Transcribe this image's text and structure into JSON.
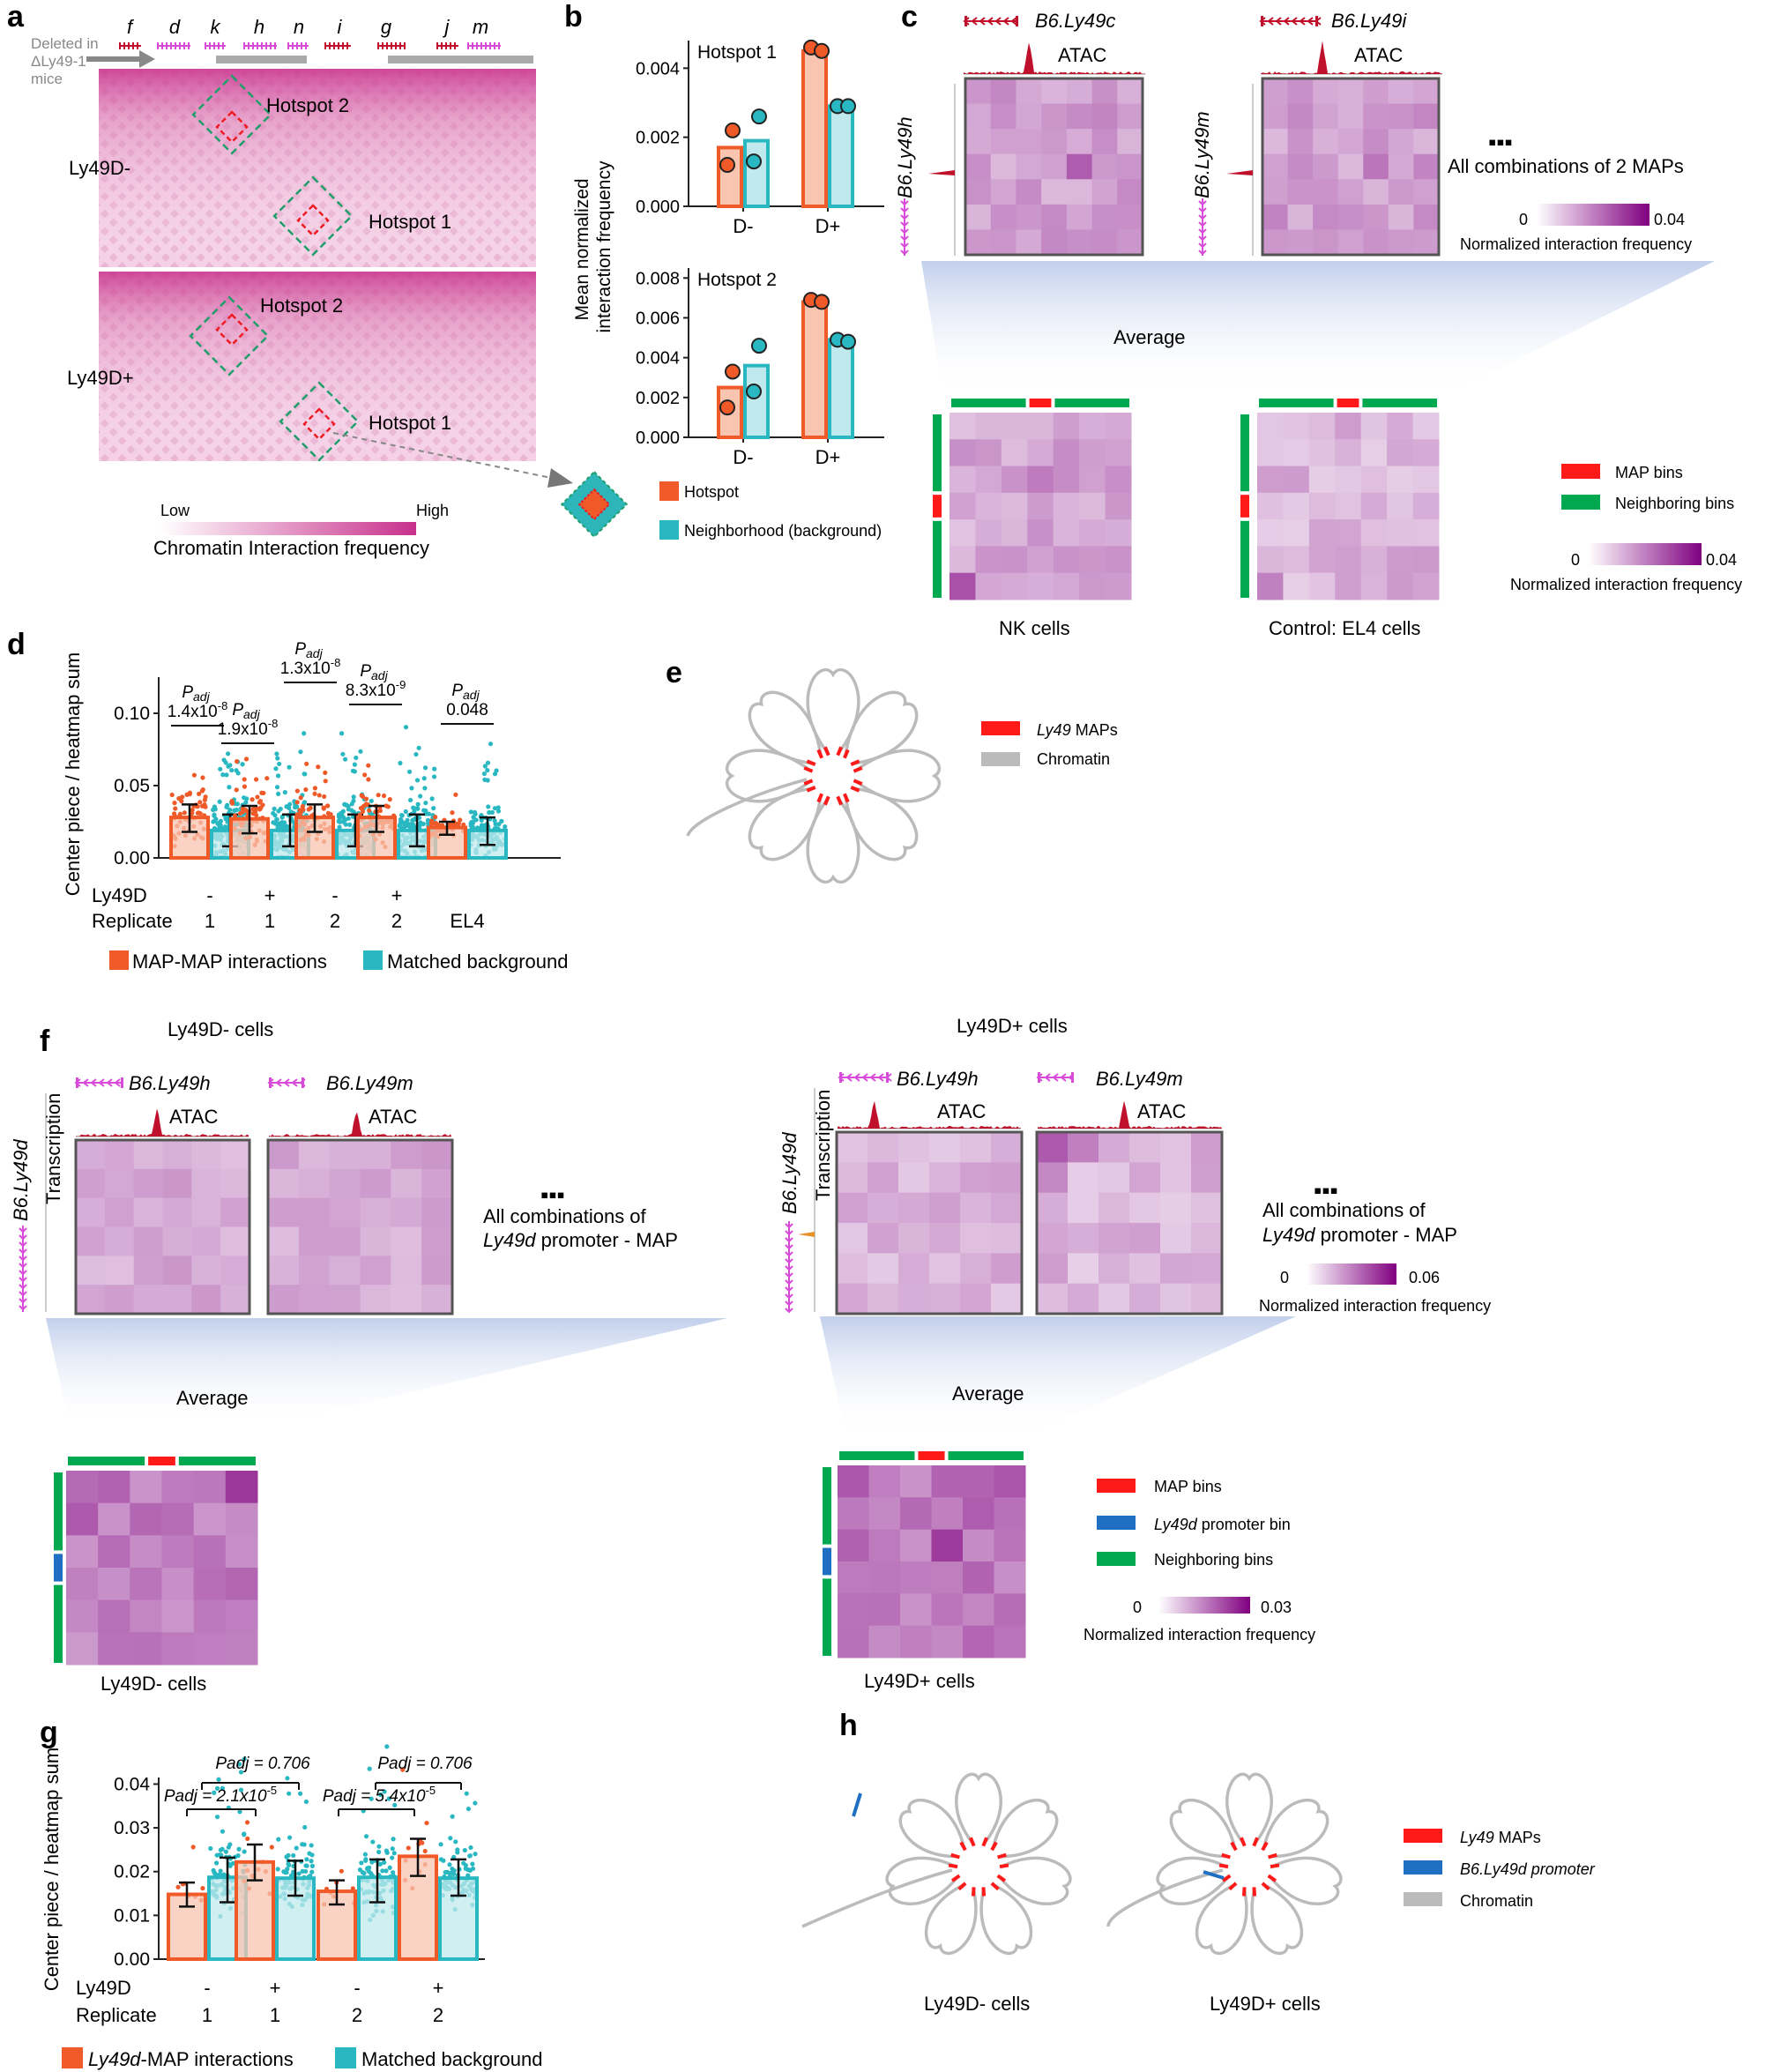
{
  "panel_letters": {
    "a": "a",
    "b": "b",
    "c": "c",
    "d": "d",
    "e": "e",
    "f": "f",
    "g": "g",
    "h": "h"
  },
  "colors": {
    "map": "#f05a28",
    "background": "#29b8c2",
    "mapFill": "#f9c4b0",
    "bgFill": "#bfe9ec",
    "heat_lo": "#ffffff",
    "heat_hi": "#800080",
    "hic": "#c8308c",
    "map_bins": "#ff1a1a",
    "neighbor_bins": "#00a94f",
    "promoter_bin": "#1f6fc2",
    "chromatin": "#bbbbbb",
    "atac": "#c0112c",
    "gene": "#d84bd8"
  },
  "panel_a": {
    "genes": [
      "f",
      "d",
      "k",
      "h",
      "n",
      "i",
      "g",
      "j",
      "m"
    ],
    "deleted_label": "Deleted in\nΔLy49-1\nmice",
    "track1": "Ly49D-",
    "track2": "Ly49D+",
    "hotspot1": "Hotspot 1",
    "hotspot2": "Hotspot 2",
    "scale_low": "Low",
    "scale_high": "High",
    "scale_title": "Chromatin Interaction frequency"
  },
  "panel_b": {
    "ylabel": "Mean normalized\ninteraction frequency",
    "legend_hotspot": "Hotspot",
    "legend_bg": "Neighborhood (background)"
  },
  "panel_c": {
    "gene_top_1": "B6.Ly49c",
    "gene_top_2": "B6.Ly49i",
    "gene_left_1": "B6.Ly49h",
    "gene_left_2": "B6.Ly49m",
    "atac": "ATAC",
    "dots": "▪▪▪",
    "combos": "All combinations of 2 MAPs",
    "scale_min": "0",
    "scale_max": "0.04",
    "scale_title": "Normalized  interaction frequency",
    "average": "Average",
    "nk": "NK cells",
    "el4": "Control: EL4 cells",
    "legend_map": "MAP bins",
    "legend_neighbor": "Neighboring bins",
    "scale2_min": "0",
    "scale2_max": "0.04",
    "scale2_title": "Normalized  interaction frequency"
  },
  "panel_d": {
    "ylabel": "Center piece / heatmap sum",
    "ly49d_label": "Ly49D",
    "replicate_label": "Replicate",
    "groups": [
      {
        "ly49d": "-",
        "rep": "1"
      },
      {
        "ly49d": "+",
        "rep": "1"
      },
      {
        "ly49d": "-",
        "rep": "2"
      },
      {
        "ly49d": "+",
        "rep": "2"
      },
      {
        "ly49d": "",
        "rep": "EL4"
      }
    ],
    "padj": [
      {
        "label": "P",
        "sub": "adj",
        "val": "1.4x10",
        "exp": "-8"
      },
      {
        "label": "P",
        "sub": "adj",
        "val": "1.9x10",
        "exp": "-8"
      },
      {
        "label": "P",
        "sub": "adj",
        "val": "1.3x10",
        "exp": "-8"
      },
      {
        "label": "P",
        "sub": "adj",
        "val": "8.3x10",
        "exp": "-9"
      },
      {
        "label": "P",
        "sub": "adj",
        "val": "0.048",
        "exp": ""
      }
    ],
    "legend_map": "MAP-MAP interactions",
    "legend_bg": "Matched background"
  },
  "panel_e": {
    "legend_map": "Ly49 MAPs",
    "legend_chromatin": "Chromatin"
  },
  "panel_f": {
    "left_title": "Ly49D- cells",
    "right_title": "Ly49D+ cells",
    "gene_h": "B6.Ly49h",
    "gene_m": "B6.Ly49m",
    "gene_d": "B6.Ly49d",
    "transcription": "Transcription",
    "atac": "ATAC",
    "dots": "▪▪▪",
    "combos_1": "All combinations of",
    "combos_2": " promoter - MAP",
    "combos_gene": "Ly49d",
    "scale_min": "0",
    "scale_max": "0.06",
    "scale_title": "Normalized  interaction frequency",
    "average": "Average",
    "left_caption": "Ly49D- cells",
    "right_caption": "Ly49D+ cells",
    "legend_map": "MAP bins",
    "legend_promoter": " promoter bin",
    "legend_promoter_gene": "Ly49d",
    "legend_neighbor": "Neighboring bins",
    "scale2_min": "0",
    "scale2_max": "0.03",
    "scale2_title": "Normalized  interaction frequency"
  },
  "panel_g": {
    "ylabel": "Center piece / heatmap sum",
    "ly49d_label": "Ly49D",
    "replicate_label": "Replicate",
    "groups": [
      {
        "ly49d": "-",
        "rep": "1"
      },
      {
        "ly49d": "+",
        "rep": "1"
      },
      {
        "ly49d": "-",
        "rep": "2"
      },
      {
        "ly49d": "+",
        "rep": "2"
      }
    ],
    "padj_top_1": "Padj = 0.706",
    "padj_top_2": "Padj = 0.706",
    "padj_low_1": "Padj = 2.1x10",
    "padj_low_1_exp": "-5",
    "padj_low_2": "Padj = 5.4x10",
    "padj_low_2_exp": "-5",
    "legend_map_gene": "Ly49d",
    "legend_map": "-MAP interactions",
    "legend_bg": "Matched background"
  },
  "panel_h": {
    "legend_map": "Ly49 MAPs",
    "legend_promoter": "B6.Ly49d promoter",
    "legend_chromatin": "Chromatin",
    "left_caption": "Ly49D- cells",
    "right_caption": "Ly49D+ cells"
  },
  "chart_data": [
    {
      "id": "b_hotspot1",
      "type": "bar",
      "title": "Hotspot 1",
      "categories": [
        "D-",
        "D+"
      ],
      "series": [
        {
          "name": "Hotspot",
          "values": [
            0.0017,
            0.0045
          ],
          "points": [
            [
              0.0012,
              0.0022
            ],
            [
              0.0046,
              0.0045
            ]
          ]
        },
        {
          "name": "Neighborhood (background)",
          "values": [
            0.0019,
            0.0029
          ],
          "points": [
            [
              0.0013,
              0.0026
            ],
            [
              0.0029,
              0.0029
            ]
          ]
        }
      ],
      "ylim": [
        0,
        0.0048
      ],
      "yticks": [
        0.0,
        0.002,
        0.004
      ],
      "ytick_labels": [
        "0.000",
        "0.002",
        "0.004"
      ]
    },
    {
      "id": "b_hotspot2",
      "type": "bar",
      "title": "Hotspot 2",
      "categories": [
        "D-",
        "D+"
      ],
      "series": [
        {
          "name": "Hotspot",
          "values": [
            0.0025,
            0.0068
          ],
          "points": [
            [
              0.0015,
              0.0033
            ],
            [
              0.0069,
              0.0068
            ]
          ]
        },
        {
          "name": "Neighborhood (background)",
          "values": [
            0.0036,
            0.0049
          ],
          "points": [
            [
              0.0023,
              0.0046
            ],
            [
              0.0049,
              0.0048
            ]
          ]
        }
      ],
      "ylim": [
        0,
        0.0085
      ],
      "yticks": [
        0.0,
        0.002,
        0.004,
        0.006,
        0.008
      ],
      "ytick_labels": [
        "0.000",
        "0.002",
        "0.004",
        "0.006",
        "0.008"
      ]
    },
    {
      "id": "d",
      "type": "bar",
      "categories": [
        "Ly49D- rep1",
        "Ly49D+ rep1",
        "Ly49D- rep2",
        "Ly49D+ rep2",
        "EL4"
      ],
      "series": [
        {
          "name": "MAP-MAP interactions",
          "values": [
            0.028,
            0.027,
            0.028,
            0.028,
            0.021
          ],
          "err_low": [
            0.018,
            0.017,
            0.018,
            0.018,
            0.016
          ],
          "err_high": [
            0.037,
            0.036,
            0.037,
            0.036,
            0.025
          ]
        },
        {
          "name": "Matched background",
          "values": [
            0.019,
            0.019,
            0.019,
            0.019,
            0.019
          ],
          "err_low": [
            0.008,
            0.008,
            0.008,
            0.008,
            0.009
          ],
          "err_high": [
            0.03,
            0.03,
            0.03,
            0.03,
            0.028
          ]
        }
      ],
      "ylim": [
        0,
        0.125
      ],
      "yticks": [
        0.0,
        0.05,
        0.1
      ],
      "ytick_labels": [
        "0.00",
        "0.05",
        "0.10"
      ]
    },
    {
      "id": "g",
      "type": "bar",
      "categories": [
        "Ly49D- rep1",
        "Ly49D+ rep1",
        "Ly49D- rep2",
        "Ly49D+ rep2"
      ],
      "series": [
        {
          "name": "Ly49d-MAP interactions",
          "values": [
            0.0148,
            0.0222,
            0.0155,
            0.0235
          ],
          "err_low": [
            0.012,
            0.018,
            0.0125,
            0.019
          ],
          "err_high": [
            0.0175,
            0.0262,
            0.018,
            0.0275
          ]
        },
        {
          "name": "Matched background",
          "values": [
            0.0187,
            0.0185,
            0.0187,
            0.0185
          ],
          "err_low": [
            0.013,
            0.0145,
            0.013,
            0.0145
          ],
          "err_high": [
            0.0232,
            0.0225,
            0.0228,
            0.0228
          ]
        }
      ],
      "ylim": [
        0,
        0.0415
      ],
      "yticks": [
        0.0,
        0.01,
        0.02,
        0.03,
        0.04
      ],
      "ytick_labels": [
        "0.00",
        "0.01",
        "0.02",
        "0.03",
        "0.04"
      ]
    }
  ]
}
